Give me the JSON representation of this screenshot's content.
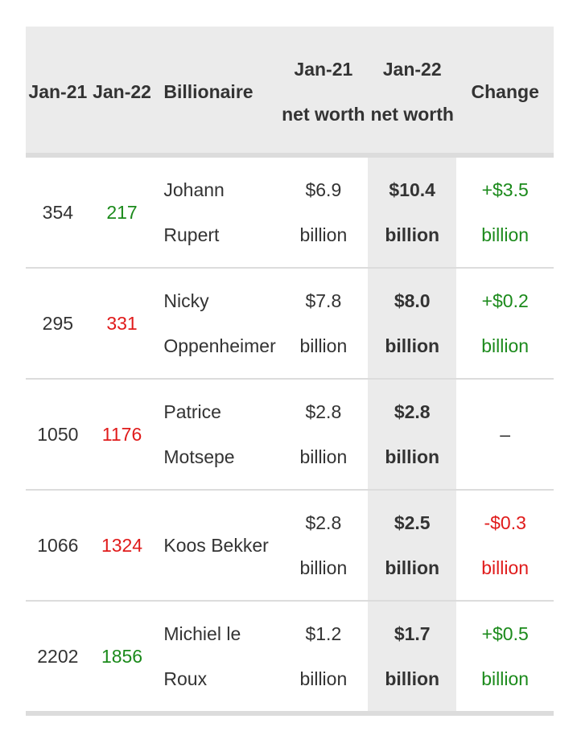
{
  "table": {
    "headers": {
      "rank_jan21": "Jan-21",
      "rank_jan22": "Jan-22",
      "billionaire": "Billionaire",
      "net_worth_jan21": "Jan-21 net worth",
      "net_worth_jan22": "Jan-22 net worth",
      "change": "Change"
    },
    "rows": [
      {
        "rank_jan21": "354",
        "rank_jan22": "217",
        "rank_trend": "up",
        "name": "Johann Rupert",
        "net_worth_jan21": "$6.9 billion",
        "net_worth_jan22": "$10.4 billion",
        "change": "+$3.5 billion",
        "change_trend": "up"
      },
      {
        "rank_jan21": "295",
        "rank_jan22": "331",
        "rank_trend": "down",
        "name": "Nicky Oppenheimer",
        "net_worth_jan21": "$7.8 billion",
        "net_worth_jan22": "$8.0 billion",
        "change": "+$0.2 billion",
        "change_trend": "up"
      },
      {
        "rank_jan21": "1050",
        "rank_jan22": "1176",
        "rank_trend": "down",
        "name": "Patrice Motsepe",
        "net_worth_jan21": "$2.8 billion",
        "net_worth_jan22": "$2.8 billion",
        "change": "–",
        "change_trend": "none"
      },
      {
        "rank_jan21": "1066",
        "rank_jan22": "1324",
        "rank_trend": "down",
        "name": "Koos Bekker",
        "net_worth_jan21": "$2.8 billion",
        "net_worth_jan22": "$2.5 billion",
        "change": "-$0.3 billion",
        "change_trend": "down"
      },
      {
        "rank_jan21": "2202",
        "rank_jan22": "1856",
        "rank_trend": "up",
        "name": "Michiel le Roux",
        "net_worth_jan21": "$1.2 billion",
        "net_worth_jan22": "$1.7 billion",
        "change": "+$0.5 billion",
        "change_trend": "up"
      }
    ]
  },
  "colors": {
    "up": "#1b8a1b",
    "down": "#e01b1b",
    "header_bg": "#ebebeb",
    "highlight_column_bg": "#ebebeb"
  }
}
